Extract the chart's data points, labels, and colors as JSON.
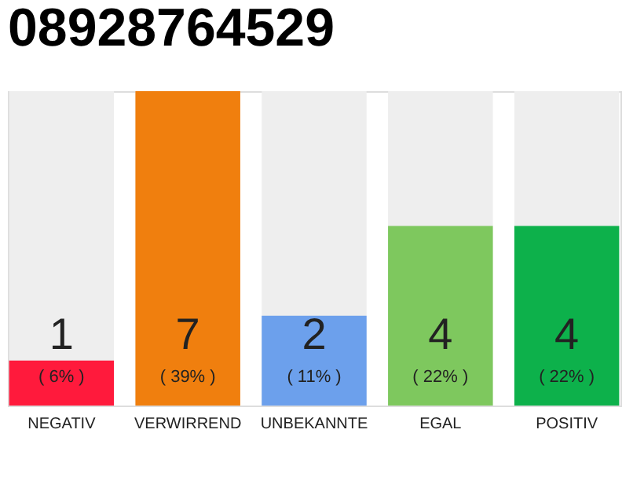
{
  "chart_data": {
    "type": "bar",
    "title": "08928764529",
    "categories": [
      "NEGATIV",
      "VERWIRREND",
      "UNBEKANNTE",
      "EGAL",
      "POSITIV"
    ],
    "values": [
      1,
      7,
      2,
      4,
      4
    ],
    "colors": [
      "#ff1a3c",
      "#f07f0e",
      "#6ca0ec",
      "#7ec85e",
      "#0db14b"
    ],
    "data_labels": true,
    "annotations": [
      "( 6% )",
      "( 39% )",
      "( 11% )",
      "( 22% )",
      "( 22% )"
    ]
  }
}
